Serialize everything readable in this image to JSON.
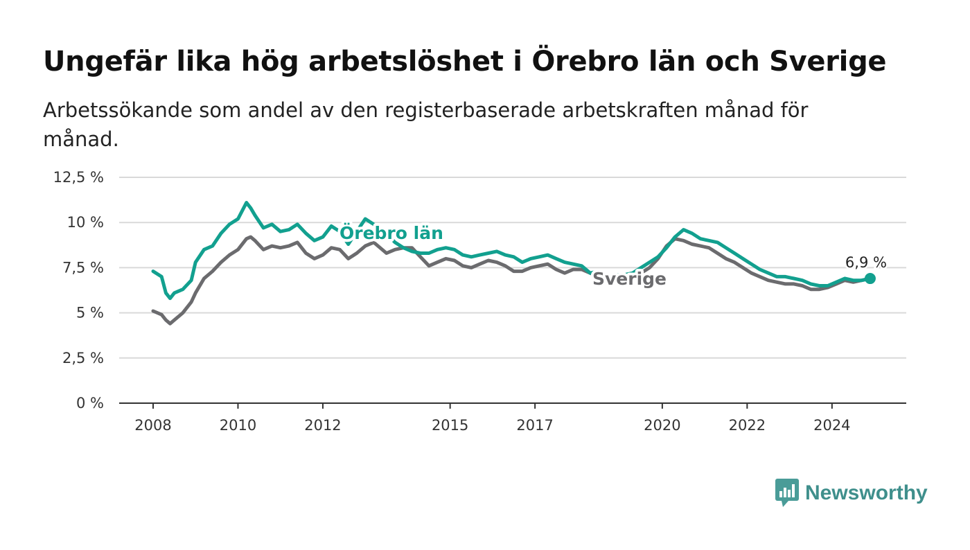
{
  "header": {
    "title": "Ungefär lika hög arbetslöshet i Örebro län och Sverige",
    "subtitle": "Arbetssökande som andel av den registerbaserade arbetskraften månad för månad."
  },
  "brand": {
    "name": "Newsworthy",
    "icon": "newsworthy-logo-icon",
    "color": "#4a9c98"
  },
  "colors": {
    "orebro": "#12a08f",
    "sverige": "#6b6b6e",
    "grid": "#d9d9d9",
    "axis": "#333333"
  },
  "chart_data": {
    "type": "line",
    "title": "Ungefär lika hög arbetslöshet i Örebro län och Sverige",
    "subtitle": "Arbetssökande som andel av den registerbaserade arbetskraften månad för månad.",
    "xlabel": "",
    "ylabel": "",
    "ylim": [
      0,
      12.5
    ],
    "yticks": [
      0,
      2.5,
      5,
      7.5,
      10,
      12.5
    ],
    "ytick_labels": [
      "0 %",
      "2,5 %",
      "5 %",
      "7,5 %",
      "10 %",
      "12,5 %"
    ],
    "xlim": [
      2007.2,
      2025.75
    ],
    "xticks": [
      2008,
      2010,
      2012,
      2015,
      2017,
      2020,
      2022,
      2024
    ],
    "xtick_labels": [
      "2008",
      "2010",
      "2012",
      "2015",
      "2017",
      "2020",
      "2022",
      "2024"
    ],
    "grid": true,
    "legend": "inline labels",
    "end_label": "6,9 %",
    "series": [
      {
        "name": "Örebro län",
        "color": "#12a08f",
        "x": [
          2008.0,
          2008.2,
          2008.3,
          2008.4,
          2008.5,
          2008.7,
          2008.9,
          2009.0,
          2009.2,
          2009.4,
          2009.6,
          2009.8,
          2010.0,
          2010.2,
          2010.3,
          2010.4,
          2010.6,
          2010.8,
          2011.0,
          2011.2,
          2011.4,
          2011.6,
          2011.8,
          2012.0,
          2012.2,
          2012.4,
          2012.6,
          2012.8,
          2013.0,
          2013.2,
          2013.5,
          2013.7,
          2013.9,
          2014.1,
          2014.3,
          2014.5,
          2014.7,
          2014.9,
          2015.1,
          2015.3,
          2015.5,
          2015.7,
          2015.9,
          2016.1,
          2016.3,
          2016.5,
          2016.7,
          2016.9,
          2017.1,
          2017.3,
          2017.5,
          2017.7,
          2017.9,
          2018.1,
          2018.3,
          2018.5,
          2018.7,
          2018.9,
          2019.1,
          2019.3,
          2019.5,
          2019.7,
          2019.9,
          2020.1,
          2020.3,
          2020.5,
          2020.7,
          2020.9,
          2021.1,
          2021.3,
          2021.5,
          2021.7,
          2021.9,
          2022.1,
          2022.3,
          2022.5,
          2022.7,
          2022.9,
          2023.1,
          2023.3,
          2023.5,
          2023.7,
          2023.9,
          2024.1,
          2024.3,
          2024.5,
          2024.7,
          2024.9
        ],
        "y": [
          7.3,
          7.0,
          6.1,
          5.8,
          6.1,
          6.3,
          6.8,
          7.8,
          8.5,
          8.7,
          9.4,
          9.9,
          10.2,
          11.1,
          10.8,
          10.4,
          9.7,
          9.9,
          9.5,
          9.6,
          9.9,
          9.4,
          9.0,
          9.2,
          9.8,
          9.5,
          8.8,
          9.5,
          10.2,
          9.9,
          9.4,
          8.9,
          8.6,
          8.4,
          8.3,
          8.3,
          8.5,
          8.6,
          8.5,
          8.2,
          8.1,
          8.2,
          8.3,
          8.4,
          8.2,
          8.1,
          7.8,
          8.0,
          8.1,
          8.2,
          8.0,
          7.8,
          7.7,
          7.6,
          7.2,
          7.3,
          7.0,
          7.1,
          7.1,
          7.2,
          7.5,
          7.8,
          8.1,
          8.6,
          9.2,
          9.6,
          9.4,
          9.1,
          9.0,
          8.9,
          8.6,
          8.3,
          8.0,
          7.7,
          7.4,
          7.2,
          7.0,
          7.0,
          6.9,
          6.8,
          6.6,
          6.5,
          6.5,
          6.7,
          6.9,
          6.8,
          6.8,
          6.9
        ]
      },
      {
        "name": "Sverige",
        "color": "#6b6b6e",
        "x": [
          2008.0,
          2008.2,
          2008.3,
          2008.4,
          2008.5,
          2008.7,
          2008.9,
          2009.0,
          2009.2,
          2009.4,
          2009.6,
          2009.8,
          2010.0,
          2010.2,
          2010.3,
          2010.4,
          2010.6,
          2010.8,
          2011.0,
          2011.2,
          2011.4,
          2011.6,
          2011.8,
          2012.0,
          2012.2,
          2012.4,
          2012.6,
          2012.8,
          2013.0,
          2013.2,
          2013.5,
          2013.7,
          2013.9,
          2014.1,
          2014.3,
          2014.5,
          2014.7,
          2014.9,
          2015.1,
          2015.3,
          2015.5,
          2015.7,
          2015.9,
          2016.1,
          2016.3,
          2016.5,
          2016.7,
          2016.9,
          2017.1,
          2017.3,
          2017.5,
          2017.7,
          2017.9,
          2018.1,
          2018.3,
          2018.5,
          2018.7,
          2018.9,
          2019.1,
          2019.3,
          2019.5,
          2019.7,
          2019.9,
          2020.1,
          2020.3,
          2020.5,
          2020.7,
          2020.9,
          2021.1,
          2021.3,
          2021.5,
          2021.7,
          2021.9,
          2022.1,
          2022.3,
          2022.5,
          2022.7,
          2022.9,
          2023.1,
          2023.3,
          2023.5,
          2023.7,
          2023.9,
          2024.1,
          2024.3,
          2024.5,
          2024.7,
          2024.9
        ],
        "y": [
          5.1,
          4.9,
          4.6,
          4.4,
          4.6,
          5.0,
          5.6,
          6.1,
          6.9,
          7.3,
          7.8,
          8.2,
          8.5,
          9.1,
          9.2,
          9.0,
          8.5,
          8.7,
          8.6,
          8.7,
          8.9,
          8.3,
          8.0,
          8.2,
          8.6,
          8.5,
          8.0,
          8.3,
          8.7,
          8.9,
          8.3,
          8.5,
          8.6,
          8.6,
          8.1,
          7.6,
          7.8,
          8.0,
          7.9,
          7.6,
          7.5,
          7.7,
          7.9,
          7.8,
          7.6,
          7.3,
          7.3,
          7.5,
          7.6,
          7.7,
          7.4,
          7.2,
          7.4,
          7.4,
          7.2,
          7.0,
          6.8,
          6.9,
          7.0,
          7.1,
          7.2,
          7.5,
          8.0,
          8.7,
          9.1,
          9.0,
          8.8,
          8.7,
          8.6,
          8.3,
          8.0,
          7.8,
          7.5,
          7.2,
          7.0,
          6.8,
          6.7,
          6.6,
          6.6,
          6.5,
          6.3,
          6.3,
          6.4,
          6.6,
          6.8,
          6.7,
          6.8,
          6.9
        ]
      }
    ]
  }
}
